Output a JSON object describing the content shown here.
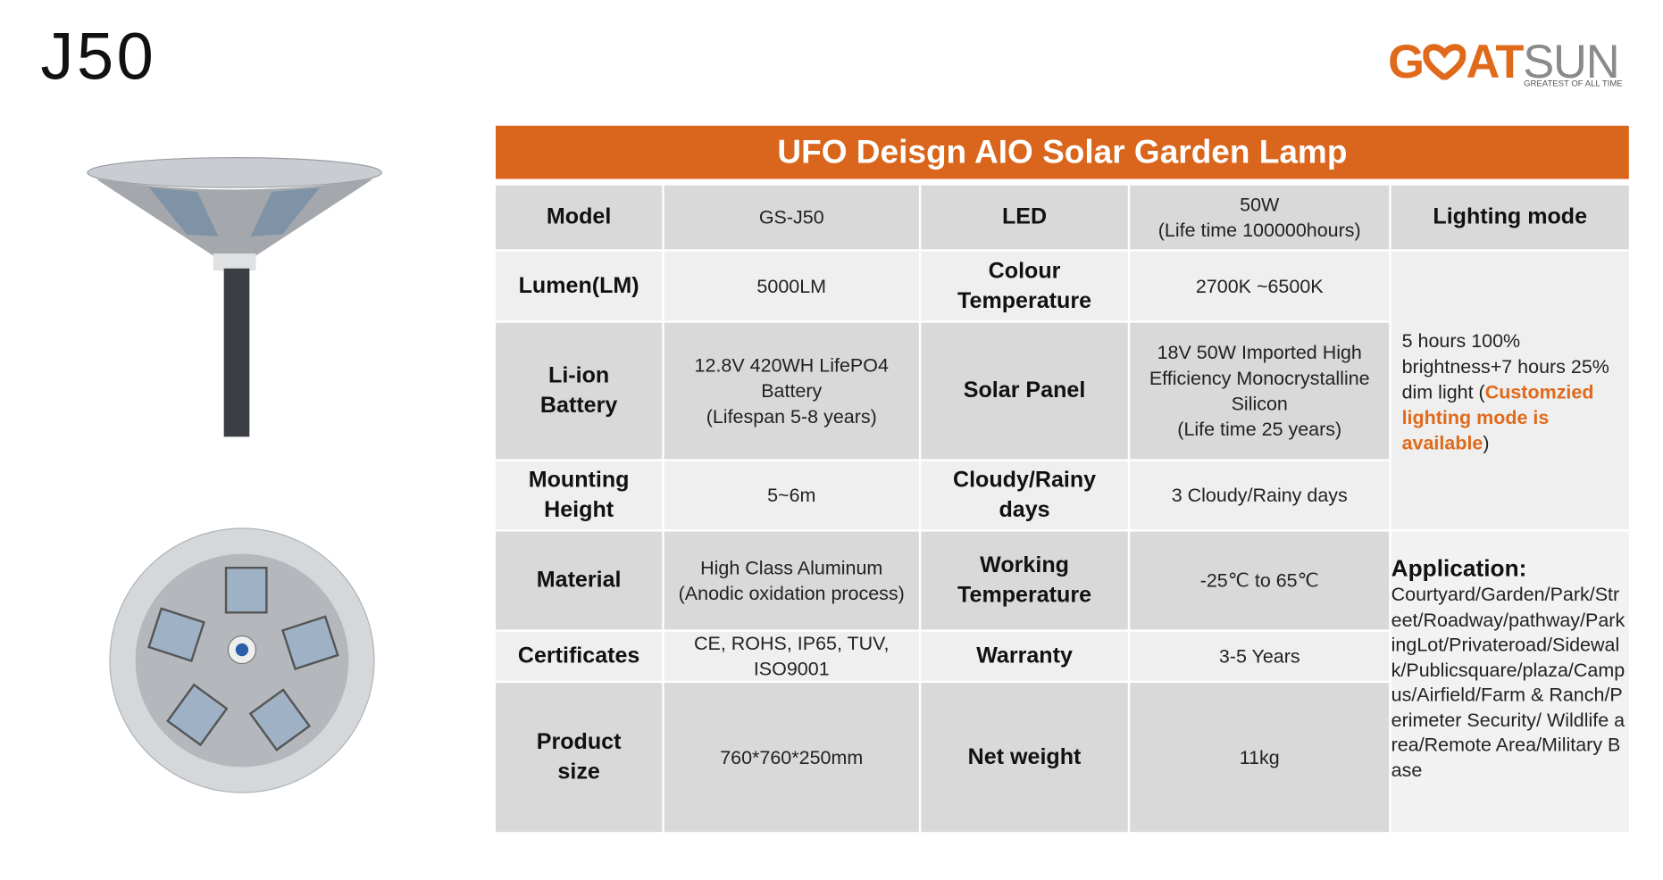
{
  "title": "J50",
  "logo": {
    "parts": [
      "G",
      "AT",
      "SUN"
    ],
    "tagline": "GREATEST OF ALL TIME"
  },
  "table": {
    "heading": "UFO Deisgn AIO Solar Garden Lamp",
    "rows": [
      [
        "Model",
        "GS-J50",
        "LED",
        "50W\n(Life time 100000hours)"
      ],
      [
        "Lumen(LM)",
        "5000LM",
        "Colour\nTemperature",
        "2700K ~6500K"
      ],
      [
        "Li-ion\nBattery",
        "12.8V 420WH  LifePO4\nBattery\n(Lifespan 5-8 years)",
        "Solar Panel",
        "18V 50W Imported High Efficiency Monocrystalline Silicon\n(Life time 25 years)"
      ],
      [
        "Mounting\nHeight",
        "5~6m",
        "Cloudy/Rainy\ndays",
        "3 Cloudy/Rainy days"
      ],
      [
        "Material",
        "High Class Aluminum\n(Anodic oxidation process)",
        "Working\nTemperature",
        "-25℃ to 65℃"
      ],
      [
        "Certificates",
        "CE, ROHS, IP65, TUV, ISO9001",
        "Warranty",
        "3-5 Years"
      ],
      [
        "Product\nsize",
        "760*760*250mm",
        "Net weight",
        "11kg"
      ]
    ],
    "lighting_mode": {
      "label": "Lighting mode",
      "parts": [
        "5 hours 100% brightness+7 hours 25% dim light (",
        "Customzied lighting mode is available",
        ")"
      ]
    },
    "application": {
      "label": "Application:",
      "text": "Courtyard/Garden/Park/Street/Roadway/pathway/ParkingLot/Privateroad/Sidewalk/Publicsquare/plaza/Campus/Airfield/Farm & Ranch/Perimeter Security/ Wildlife area/Remote Area/Military Base"
    }
  }
}
